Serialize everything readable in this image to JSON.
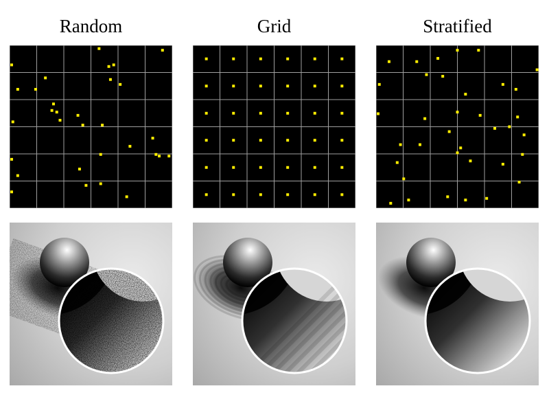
{
  "panels": [
    {
      "title": "Random",
      "samples": [
        [
          0.0,
          0.12
        ],
        [
          0.55,
          0.02
        ],
        [
          0.64,
          0.12
        ],
        [
          0.94,
          0.03
        ],
        [
          0.05,
          0.27
        ],
        [
          0.16,
          0.27
        ],
        [
          0.22,
          0.2
        ],
        [
          0.62,
          0.21
        ],
        [
          0.68,
          0.24
        ],
        [
          0.61,
          0.13
        ],
        [
          0.27,
          0.36
        ],
        [
          0.26,
          0.4
        ],
        [
          0.29,
          0.41
        ],
        [
          0.31,
          0.46
        ],
        [
          0.42,
          0.43
        ],
        [
          0.45,
          0.49
        ],
        [
          0.57,
          0.49
        ],
        [
          0.02,
          0.47
        ],
        [
          0.74,
          0.62
        ],
        [
          0.88,
          0.57
        ],
        [
          0.56,
          0.67
        ],
        [
          0.9,
          0.67
        ],
        [
          0.92,
          0.68
        ],
        [
          0.98,
          0.68
        ],
        [
          0.0,
          0.7
        ],
        [
          0.05,
          0.8
        ],
        [
          0.43,
          0.76
        ],
        [
          0.47,
          0.86
        ],
        [
          0.56,
          0.85
        ],
        [
          0.72,
          0.93
        ],
        [
          0.01,
          0.9
        ]
      ]
    },
    {
      "title": "Grid",
      "samples": [
        [
          0.083,
          0.083
        ],
        [
          0.25,
          0.083
        ],
        [
          0.417,
          0.083
        ],
        [
          0.583,
          0.083
        ],
        [
          0.75,
          0.083
        ],
        [
          0.917,
          0.083
        ],
        [
          0.083,
          0.25
        ],
        [
          0.25,
          0.25
        ],
        [
          0.417,
          0.25
        ],
        [
          0.583,
          0.25
        ],
        [
          0.75,
          0.25
        ],
        [
          0.917,
          0.25
        ],
        [
          0.083,
          0.417
        ],
        [
          0.25,
          0.417
        ],
        [
          0.417,
          0.417
        ],
        [
          0.583,
          0.417
        ],
        [
          0.75,
          0.417
        ],
        [
          0.917,
          0.417
        ],
        [
          0.083,
          0.583
        ],
        [
          0.25,
          0.583
        ],
        [
          0.417,
          0.583
        ],
        [
          0.583,
          0.583
        ],
        [
          0.75,
          0.583
        ],
        [
          0.917,
          0.583
        ],
        [
          0.083,
          0.75
        ],
        [
          0.25,
          0.75
        ],
        [
          0.417,
          0.75
        ],
        [
          0.583,
          0.75
        ],
        [
          0.75,
          0.75
        ],
        [
          0.917,
          0.75
        ],
        [
          0.083,
          0.917
        ],
        [
          0.25,
          0.917
        ],
        [
          0.417,
          0.917
        ],
        [
          0.583,
          0.917
        ],
        [
          0.75,
          0.917
        ],
        [
          0.917,
          0.917
        ]
      ]
    },
    {
      "title": "Stratified",
      "samples": [
        [
          0.08,
          0.1
        ],
        [
          0.25,
          0.1
        ],
        [
          0.38,
          0.08
        ],
        [
          0.5,
          0.03
        ],
        [
          0.63,
          0.03
        ],
        [
          0.99,
          0.15
        ],
        [
          0.02,
          0.24
        ],
        [
          0.31,
          0.18
        ],
        [
          0.41,
          0.19
        ],
        [
          0.55,
          0.3
        ],
        [
          0.78,
          0.24
        ],
        [
          0.86,
          0.27
        ],
        [
          0.0,
          0.42
        ],
        [
          0.3,
          0.45
        ],
        [
          0.5,
          0.41
        ],
        [
          0.64,
          0.43
        ],
        [
          0.73,
          0.51
        ],
        [
          0.82,
          0.5
        ],
        [
          0.87,
          0.44
        ],
        [
          0.15,
          0.61
        ],
        [
          0.27,
          0.61
        ],
        [
          0.45,
          0.53
        ],
        [
          0.5,
          0.66
        ],
        [
          0.52,
          0.63
        ],
        [
          0.91,
          0.55
        ],
        [
          0.13,
          0.72
        ],
        [
          0.58,
          0.71
        ],
        [
          0.78,
          0.73
        ],
        [
          0.9,
          0.67
        ],
        [
          0.17,
          0.82
        ],
        [
          0.2,
          0.95
        ],
        [
          0.44,
          0.93
        ],
        [
          0.55,
          0.95
        ],
        [
          0.68,
          0.94
        ],
        [
          0.88,
          0.84
        ],
        [
          0.09,
          0.97
        ]
      ]
    }
  ],
  "colors": {
    "sample": "#ffee00",
    "grid": "#a0a0a0",
    "background": "#000000"
  },
  "renders": [
    {
      "style": "noisy"
    },
    {
      "style": "banded"
    },
    {
      "style": "smooth"
    }
  ]
}
